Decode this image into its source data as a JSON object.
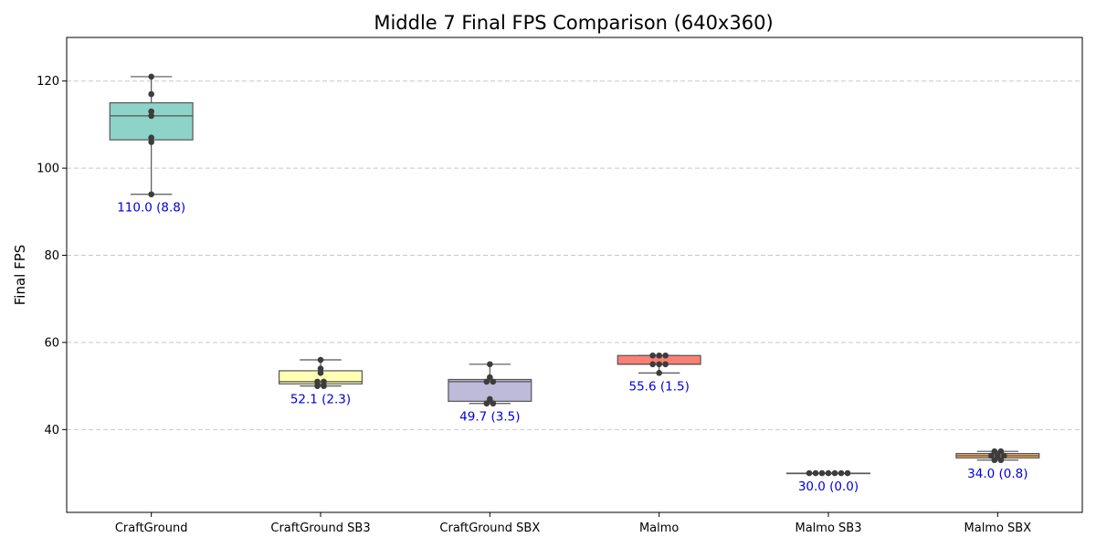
{
  "chart_data": {
    "type": "box",
    "title": "Middle 7 Final FPS Comparison (640x360)",
    "xlabel": "",
    "ylabel": "Final FPS",
    "ylim": [
      21,
      130
    ],
    "yticks": [
      40,
      60,
      80,
      100,
      120
    ],
    "grid": "y-dashed",
    "legend": "none",
    "categories": [
      "CraftGround",
      "CraftGround SB3",
      "CraftGround SBX",
      "Malmo",
      "Malmo SB3",
      "Malmo SBX"
    ],
    "series": [
      {
        "category": "CraftGround",
        "color": "#8dd3c7",
        "q1": 106.5,
        "median": 112,
        "q3": 115,
        "whisker_low": 94,
        "whisker_high": 121,
        "points": [
          121,
          117,
          113,
          112,
          107,
          106,
          94
        ],
        "label": "110.0 (8.8)",
        "mean": 110.0,
        "std": 8.8
      },
      {
        "category": "CraftGround SB3",
        "color": "#ffffb3",
        "q1": 50.5,
        "median": 51,
        "q3": 53.5,
        "whisker_low": 50,
        "whisker_high": 56,
        "points": [
          56,
          54,
          53,
          51,
          51,
          50,
          50
        ],
        "label": "52.1 (2.3)",
        "mean": 52.1,
        "std": 2.3
      },
      {
        "category": "CraftGround SBX",
        "color": "#bebada",
        "q1": 46.5,
        "median": 51,
        "q3": 51.5,
        "whisker_low": 46,
        "whisker_high": 55,
        "points": [
          55,
          52,
          51,
          51,
          47,
          46,
          46
        ],
        "label": "49.7 (3.5)",
        "mean": 49.7,
        "std": 3.5
      },
      {
        "category": "Malmo",
        "color": "#fb8072",
        "q1": 55,
        "median": 55,
        "q3": 57,
        "whisker_low": 53,
        "whisker_high": 57,
        "points": [
          57,
          57,
          57,
          55,
          55,
          55,
          53
        ],
        "label": "55.6 (1.5)",
        "mean": 55.6,
        "std": 1.5
      },
      {
        "category": "Malmo SB3",
        "color": "#80b1d3",
        "q1": 30,
        "median": 30,
        "q3": 30,
        "whisker_low": 30,
        "whisker_high": 30,
        "points": [
          30,
          30,
          30,
          30,
          30,
          30,
          30
        ],
        "label": "30.0 (0.0)",
        "mean": 30.0,
        "std": 0.0
      },
      {
        "category": "Malmo SBX",
        "color": "#fdb462",
        "q1": 33.5,
        "median": 34,
        "q3": 34.5,
        "whisker_low": 33,
        "whisker_high": 35,
        "points": [
          35,
          35,
          34,
          34,
          34,
          33,
          33
        ],
        "label": "34.0 (0.8)",
        "mean": 34.0,
        "std": 0.8
      }
    ]
  }
}
